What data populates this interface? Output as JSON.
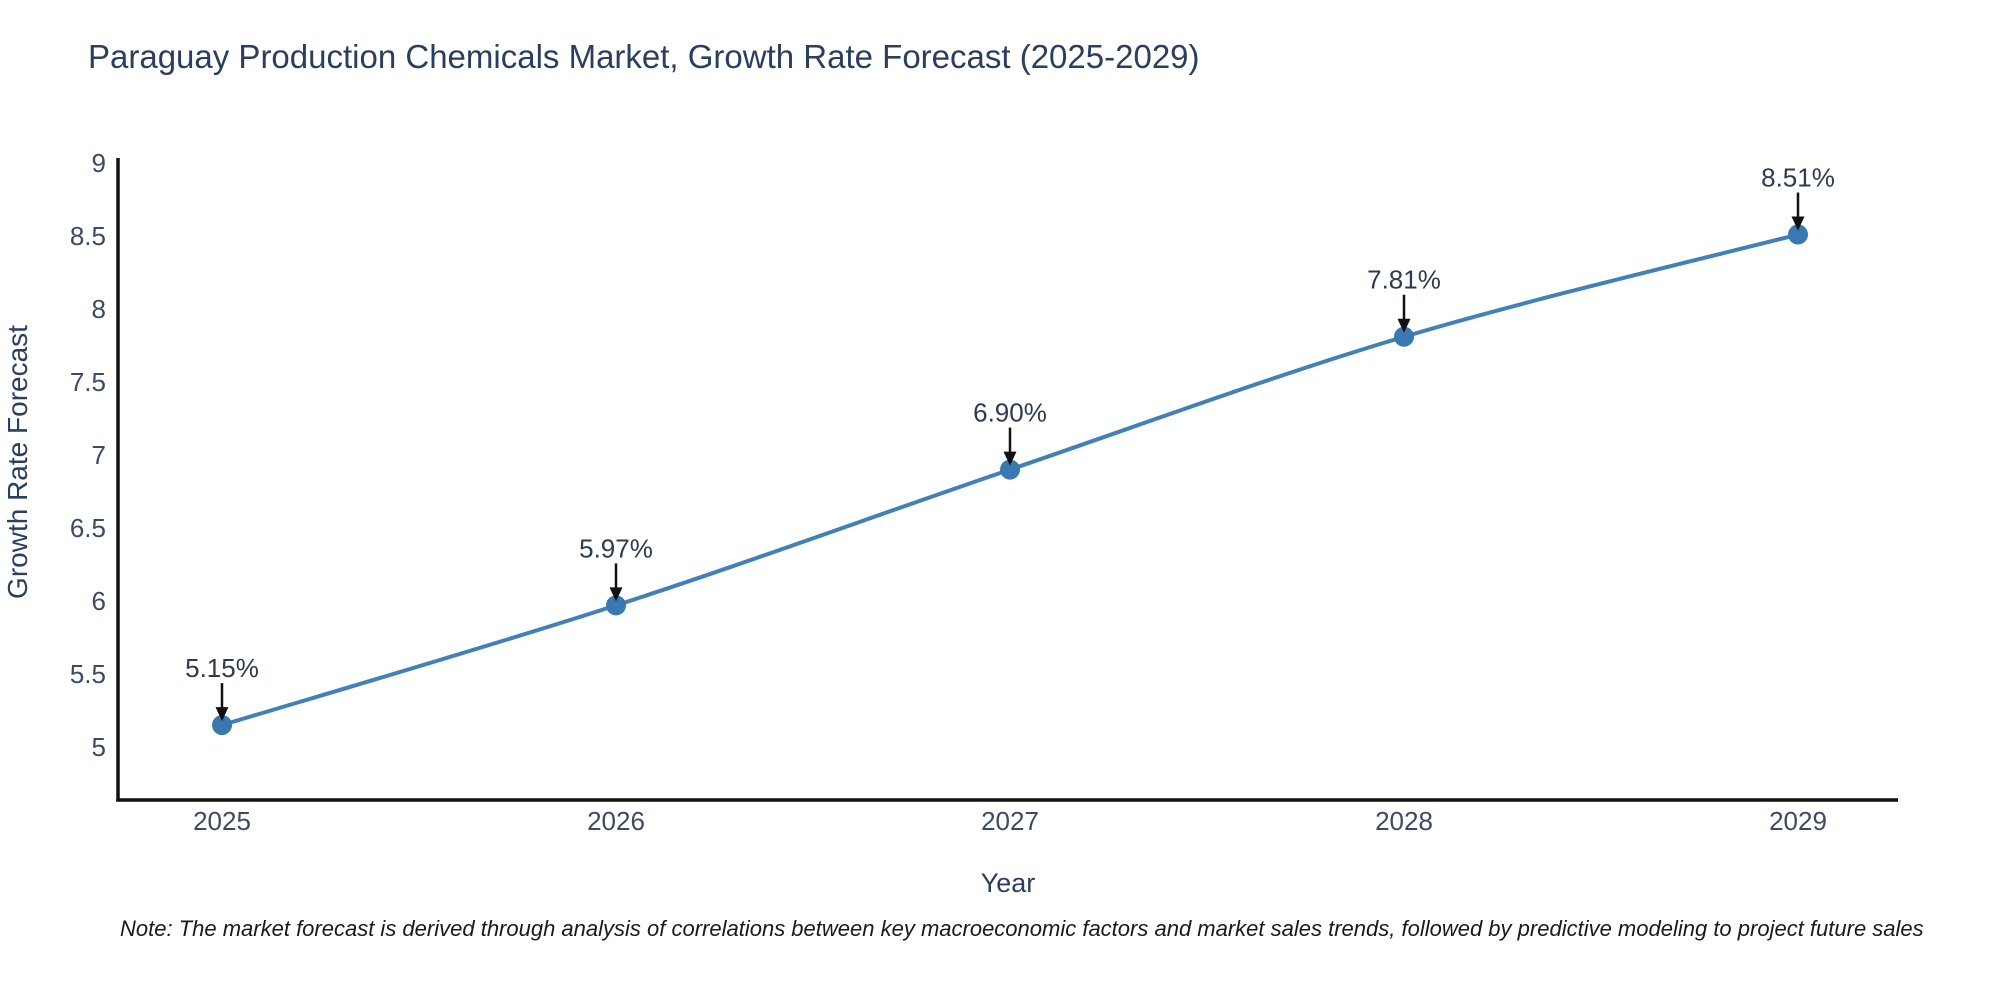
{
  "title": "Paraguay Production Chemicals Market, Growth Rate Forecast (2025-2029)",
  "note": "Note: The market forecast is derived through analysis of correlations between key macroeconomic factors and market sales trends, followed by predictive modeling to project future sales",
  "colors": {
    "line": "#4180b8",
    "marker": "#3a78b2",
    "axis": "#111111",
    "title_text": "#2a3f5f",
    "tick_text": "#3d4a63",
    "annotation_text": "#2f3a4e",
    "arrow": "#111111"
  },
  "chart_data": {
    "type": "line",
    "title": "Paraguay Production Chemicals Market, Growth Rate Forecast (2025-2029)",
    "x": [
      2025,
      2026,
      2027,
      2028,
      2029
    ],
    "series": [
      {
        "name": "Growth Rate Forecast",
        "values": [
          5.15,
          5.97,
          6.9,
          7.81,
          8.51
        ]
      }
    ],
    "point_labels": [
      "5.15%",
      "5.97%",
      "6.90%",
      "7.81%",
      "8.51%"
    ],
    "xlabel": "Year",
    "ylabel": "Growth Rate Forecast",
    "xticks": [
      2025,
      2026,
      2027,
      2028,
      2029
    ],
    "yticks": [
      5,
      5.5,
      6,
      6.5,
      7,
      7.5,
      8,
      8.5,
      9
    ],
    "ylim": [
      4.6,
      9
    ],
    "grid": false,
    "legend": false,
    "annotation_arrows": true,
    "marker_style": "circle"
  }
}
